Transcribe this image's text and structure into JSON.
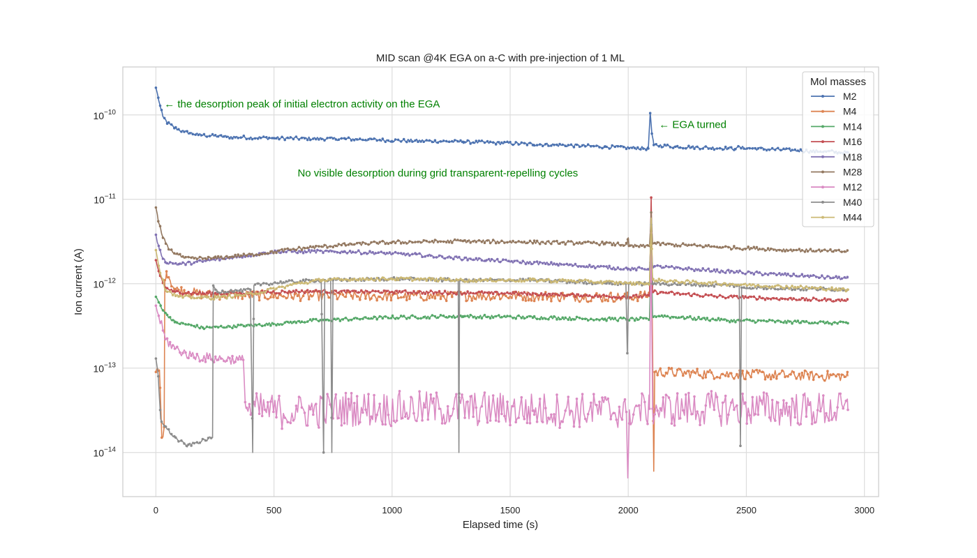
{
  "chart_data": {
    "type": "line",
    "title": "MID scan @4K EGA on a-C with pre-injection of 1 ML",
    "xlabel": "Elapsed time (s)",
    "ylabel": "Ion current (A)",
    "xlim": [
      -140,
      3060
    ],
    "ylim": [
      3e-15,
      3.7e-10
    ],
    "yscale": "log",
    "grid": true,
    "x_ticks": [
      0,
      500,
      1000,
      1500,
      2000,
      2500,
      3000
    ],
    "x_tick_labels": [
      "0",
      "500",
      "1000",
      "1500",
      "2000",
      "2500",
      "3000"
    ],
    "y_ticks": [
      1e-14,
      1e-13,
      1e-12,
      1e-11,
      1e-10
    ],
    "y_tick_labels": [
      {
        "base": "10",
        "exp": "−14"
      },
      {
        "base": "10",
        "exp": "−13"
      },
      {
        "base": "10",
        "exp": "−12"
      },
      {
        "base": "10",
        "exp": "−11"
      },
      {
        "base": "10",
        "exp": "−10"
      }
    ],
    "legend": {
      "title": "Mol masses",
      "placement": "top-right"
    },
    "annotations": [
      {
        "text": "← the desorption peak of initial electron activity on the EGA",
        "x": 35,
        "y": 1.35e-10,
        "color": "#008000"
      },
      {
        "text": "← EGA turned",
        "x": 2130,
        "y": 7.7e-11,
        "color": "#008000"
      },
      {
        "text": "No visible desorption during grid transparent-repelling cycles",
        "x": 600,
        "y": 2.05e-11,
        "color": "#008000"
      }
    ],
    "series": [
      {
        "name": "M2",
        "color": "#4c72b0",
        "points": [
          [
            0,
            2.1e-10
          ],
          [
            10,
            1.6e-10
          ],
          [
            20,
            1.2e-10
          ],
          [
            30,
            9.5e-11
          ],
          [
            50,
            8e-11
          ],
          [
            80,
            7e-11
          ],
          [
            120,
            6.3e-11
          ],
          [
            180,
            5.8e-11
          ],
          [
            300,
            5.5e-11
          ],
          [
            500,
            5.3e-11
          ],
          [
            800,
            5.2e-11
          ],
          [
            1000,
            5e-11
          ],
          [
            1300,
            4.8e-11
          ],
          [
            1600,
            4.5e-11
          ],
          [
            1900,
            4.2e-11
          ],
          [
            2085,
            4e-11
          ],
          [
            2093,
            1.05e-10
          ],
          [
            2100,
            6e-11
          ],
          [
            2108,
            4.4e-11
          ],
          [
            2200,
            4.2e-11
          ],
          [
            2450,
            4e-11
          ],
          [
            2460,
            4.1e-11
          ],
          [
            2700,
            3.8e-11
          ],
          [
            2930,
            3.6e-11
          ]
        ],
        "drops": []
      },
      {
        "name": "M4",
        "color": "#dd8452",
        "points": [
          [
            0,
            9e-14
          ],
          [
            15,
            9.5e-14
          ],
          [
            25,
            1.5e-14
          ],
          [
            35,
            2e-14
          ],
          [
            38,
            1.1e-12
          ],
          [
            45,
            1.4e-12
          ],
          [
            80,
            8.5e-13
          ],
          [
            200,
            7.5e-13
          ],
          [
            500,
            7.2e-13
          ],
          [
            1000,
            7.1e-13
          ],
          [
            1500,
            7.2e-13
          ],
          [
            2000,
            6.9e-13
          ],
          [
            2090,
            7.3e-13
          ],
          [
            2097,
            4e-12
          ],
          [
            2103,
            2e-13
          ],
          [
            2108,
            6e-15
          ],
          [
            2112,
            9e-14
          ],
          [
            2400,
            8.5e-14
          ],
          [
            2930,
            8e-14
          ]
        ],
        "drops": []
      },
      {
        "name": "M14",
        "color": "#55a868",
        "points": [
          [
            0,
            7e-13
          ],
          [
            20,
            5.5e-13
          ],
          [
            40,
            4.5e-13
          ],
          [
            80,
            3.5e-13
          ],
          [
            200,
            3e-13
          ],
          [
            400,
            3.2e-13
          ],
          [
            700,
            3.7e-13
          ],
          [
            1000,
            4e-13
          ],
          [
            1300,
            4.1e-13
          ],
          [
            1600,
            4e-13
          ],
          [
            1900,
            3.8e-13
          ],
          [
            2090,
            3.8e-13
          ],
          [
            2097,
            3e-12
          ],
          [
            2103,
            4.2e-13
          ],
          [
            2400,
            3.7e-13
          ],
          [
            2930,
            3.4e-13
          ]
        ],
        "drops": []
      },
      {
        "name": "M16",
        "color": "#c44e52",
        "points": [
          [
            0,
            1.9e-12
          ],
          [
            15,
            1.3e-12
          ],
          [
            40,
            9e-13
          ],
          [
            80,
            8e-13
          ],
          [
            200,
            7.6e-13
          ],
          [
            400,
            7.8e-13
          ],
          [
            600,
            8.1e-13
          ],
          [
            1000,
            8e-13
          ],
          [
            1500,
            7.7e-13
          ],
          [
            2000,
            7e-13
          ],
          [
            2090,
            7.2e-13
          ],
          [
            2097,
            1.05e-11
          ],
          [
            2103,
            8e-13
          ],
          [
            2400,
            7e-13
          ],
          [
            2930,
            6.3e-13
          ]
        ],
        "drops": []
      },
      {
        "name": "M18",
        "color": "#8172b3",
        "points": [
          [
            0,
            3.8e-12
          ],
          [
            15,
            2.5e-12
          ],
          [
            40,
            1.8e-12
          ],
          [
            100,
            1.7e-12
          ],
          [
            300,
            2e-12
          ],
          [
            500,
            2.4e-12
          ],
          [
            800,
            2.4e-12
          ],
          [
            1100,
            2.2e-12
          ],
          [
            1400,
            1.9e-12
          ],
          [
            1700,
            1.7e-12
          ],
          [
            2000,
            1.5e-12
          ],
          [
            2090,
            1.5e-12
          ],
          [
            2097,
            3.5e-12
          ],
          [
            2103,
            1.6e-12
          ],
          [
            2400,
            1.4e-12
          ],
          [
            2930,
            1.15e-12
          ]
        ],
        "drops": []
      },
      {
        "name": "M28",
        "color": "#937860",
        "points": [
          [
            0,
            8e-12
          ],
          [
            10,
            5.5e-12
          ],
          [
            30,
            3.5e-12
          ],
          [
            60,
            2.5e-12
          ],
          [
            120,
            2e-12
          ],
          [
            250,
            2e-12
          ],
          [
            400,
            2.2e-12
          ],
          [
            600,
            2.6e-12
          ],
          [
            800,
            2.9e-12
          ],
          [
            1000,
            3.1e-12
          ],
          [
            1300,
            3.2e-12
          ],
          [
            1600,
            3.1e-12
          ],
          [
            1900,
            3e-12
          ],
          [
            1995,
            2.9e-12
          ],
          [
            2000,
            3.5e-12
          ],
          [
            2003,
            2.8e-12
          ],
          [
            2090,
            2.8e-12
          ],
          [
            2097,
            7e-12
          ],
          [
            2103,
            3e-12
          ],
          [
            2400,
            2.7e-12
          ],
          [
            2700,
            2.5e-12
          ],
          [
            2930,
            2.4e-12
          ]
        ],
        "drops": []
      },
      {
        "name": "M12",
        "color": "#da8bc3",
        "points": [
          [
            0,
            5.5e-13
          ],
          [
            20,
            3.5e-13
          ],
          [
            40,
            2.2e-13
          ],
          [
            80,
            1.7e-13
          ],
          [
            150,
            1.4e-13
          ],
          [
            250,
            1.3e-13
          ],
          [
            370,
            1.25e-13
          ],
          [
            380,
            3.5e-14
          ],
          [
            400,
            3.2e-14
          ],
          [
            600,
            3e-14
          ],
          [
            800,
            3.3e-14
          ],
          [
            1200,
            3.3e-14
          ],
          [
            1600,
            3.2e-14
          ],
          [
            1990,
            3.1e-14
          ],
          [
            1998,
            5e-15
          ],
          [
            2005,
            3.2e-14
          ],
          [
            2090,
            3.3e-14
          ],
          [
            2097,
            4e-12
          ],
          [
            2103,
            3.3e-14
          ],
          [
            2500,
            3.3e-14
          ],
          [
            2930,
            3.2e-14
          ]
        ],
        "drops": []
      },
      {
        "name": "M40",
        "color": "#8c8c8c",
        "points": [
          [
            0,
            1.3e-13
          ],
          [
            10,
            8e-14
          ],
          [
            20,
            2.5e-14
          ],
          [
            40,
            2e-14
          ],
          [
            80,
            1.5e-14
          ],
          [
            130,
            1.2e-14
          ],
          [
            240,
            1.5e-14
          ],
          [
            243,
            9.5e-13
          ],
          [
            260,
            8e-13
          ],
          [
            400,
            8.5e-13
          ],
          [
            410,
            1e-14
          ],
          [
            415,
            9.5e-13
          ],
          [
            450,
            1e-12
          ],
          [
            700,
            1.1e-12
          ],
          [
            710,
            1e-14
          ],
          [
            715,
            1.1e-12
          ],
          [
            740,
            1.1e-12
          ],
          [
            745,
            1e-14
          ],
          [
            750,
            1.1e-12
          ],
          [
            1000,
            1.15e-12
          ],
          [
            1280,
            1.1e-12
          ],
          [
            1283,
            1e-14
          ],
          [
            1286,
            1.1e-12
          ],
          [
            1600,
            1.1e-12
          ],
          [
            1990,
            1e-12
          ],
          [
            1996,
            1.5e-13
          ],
          [
            2002,
            1e-12
          ],
          [
            2090,
            1e-12
          ],
          [
            2097,
            5e-12
          ],
          [
            2103,
            1e-12
          ],
          [
            2470,
            9.5e-13
          ],
          [
            2475,
            1.2e-14
          ],
          [
            2480,
            9e-13
          ],
          [
            2930,
            8.5e-13
          ]
        ],
        "drops": []
      },
      {
        "name": "M44",
        "color": "#ccb974",
        "points": [
          [
            0,
            2.5e-12
          ],
          [
            15,
            1.5e-12
          ],
          [
            40,
            8.5e-13
          ],
          [
            100,
            7e-13
          ],
          [
            250,
            6.8e-13
          ],
          [
            400,
            7.5e-13
          ],
          [
            600,
            1e-12
          ],
          [
            700,
            1.1e-12
          ],
          [
            1000,
            1.15e-12
          ],
          [
            1300,
            1.1e-12
          ],
          [
            1600,
            1.1e-12
          ],
          [
            1900,
            1.05e-12
          ],
          [
            2090,
            1e-12
          ],
          [
            2097,
            6e-12
          ],
          [
            2103,
            1.1e-12
          ],
          [
            2400,
            1e-12
          ],
          [
            2930,
            8.5e-13
          ]
        ],
        "drops": []
      }
    ]
  }
}
